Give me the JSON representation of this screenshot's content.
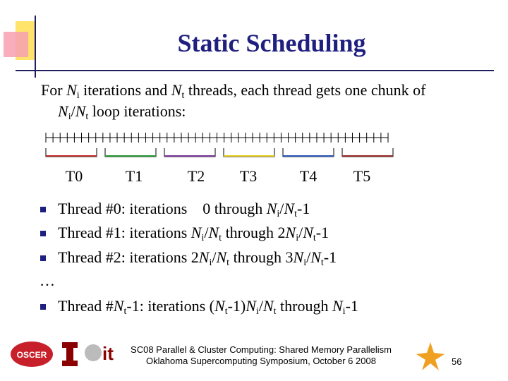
{
  "title": "Static Scheduling",
  "intro": [
    [
      {
        "text": "For "
      },
      {
        "text": "N",
        "style": "i"
      },
      {
        "text": "i",
        "style": "sub"
      },
      {
        "text": " iterations and "
      },
      {
        "text": "N",
        "style": "i"
      },
      {
        "text": "t",
        "style": "sub"
      },
      {
        "text": " threads, each thread gets one chunk of"
      }
    ],
    [
      {
        "text": "N",
        "style": "i"
      },
      {
        "text": "i",
        "style": "sub"
      },
      {
        "text": "/"
      },
      {
        "text": "N",
        "style": "i"
      },
      {
        "text": "t",
        "style": "sub"
      },
      {
        "text": " loop iterations:"
      }
    ]
  ],
  "threads": [
    "T0",
    "T1",
    "T2",
    "T3",
    "T4",
    "T5"
  ],
  "bullets": [
    [
      {
        "text": "Thread #0: iterations    0 through "
      },
      {
        "text": "N",
        "style": "i"
      },
      {
        "text": "i",
        "style": "sub"
      },
      {
        "text": "/"
      },
      {
        "text": "N",
        "style": "i"
      },
      {
        "text": "t",
        "style": "sub"
      },
      {
        "text": "-1"
      }
    ],
    [
      {
        "text": "Thread #1: iterations "
      },
      {
        "text": "N",
        "style": "i"
      },
      {
        "text": "i",
        "style": "sub"
      },
      {
        "text": "/"
      },
      {
        "text": "N",
        "style": "i"
      },
      {
        "text": "t",
        "style": "sub"
      },
      {
        "text": " through 2"
      },
      {
        "text": "N",
        "style": "i"
      },
      {
        "text": "i",
        "style": "sub"
      },
      {
        "text": "/"
      },
      {
        "text": "N",
        "style": "i"
      },
      {
        "text": "t",
        "style": "sub"
      },
      {
        "text": "-1"
      }
    ],
    [
      {
        "text": "Thread #2: iterations 2"
      },
      {
        "text": "N",
        "style": "i"
      },
      {
        "text": "i",
        "style": "sub"
      },
      {
        "text": "/"
      },
      {
        "text": "N",
        "style": "i"
      },
      {
        "text": "t",
        "style": "sub"
      },
      {
        "text": " through 3"
      },
      {
        "text": "N",
        "style": "i"
      },
      {
        "text": "i",
        "style": "sub"
      },
      {
        "text": "/"
      },
      {
        "text": "N",
        "style": "i"
      },
      {
        "text": "t",
        "style": "sub"
      },
      {
        "text": "-1"
      }
    ]
  ],
  "ellipsis": "…",
  "last_bullet": [
    {
      "text": "Thread #"
    },
    {
      "text": "N",
      "style": "i"
    },
    {
      "text": "t",
      "style": "sub"
    },
    {
      "text": "-1: iterations ("
    },
    {
      "text": "N",
      "style": "i"
    },
    {
      "text": "t",
      "style": "sub"
    },
    {
      "text": "-1)"
    },
    {
      "text": "N",
      "style": "i"
    },
    {
      "text": "i",
      "style": "sub"
    },
    {
      "text": "/"
    },
    {
      "text": "N",
      "style": "i"
    },
    {
      "text": "t",
      "style": "sub"
    },
    {
      "text": " through "
    },
    {
      "text": "N",
      "style": "i"
    },
    {
      "text": "i",
      "style": "sub"
    },
    {
      "text": "-1"
    }
  ],
  "footer": {
    "line1": "SC08 Parallel & Cluster Computing: Shared Memory Parallelism",
    "line2": "Oklahoma Supercomputing Symposium, October 6 2008",
    "page": "56"
  }
}
